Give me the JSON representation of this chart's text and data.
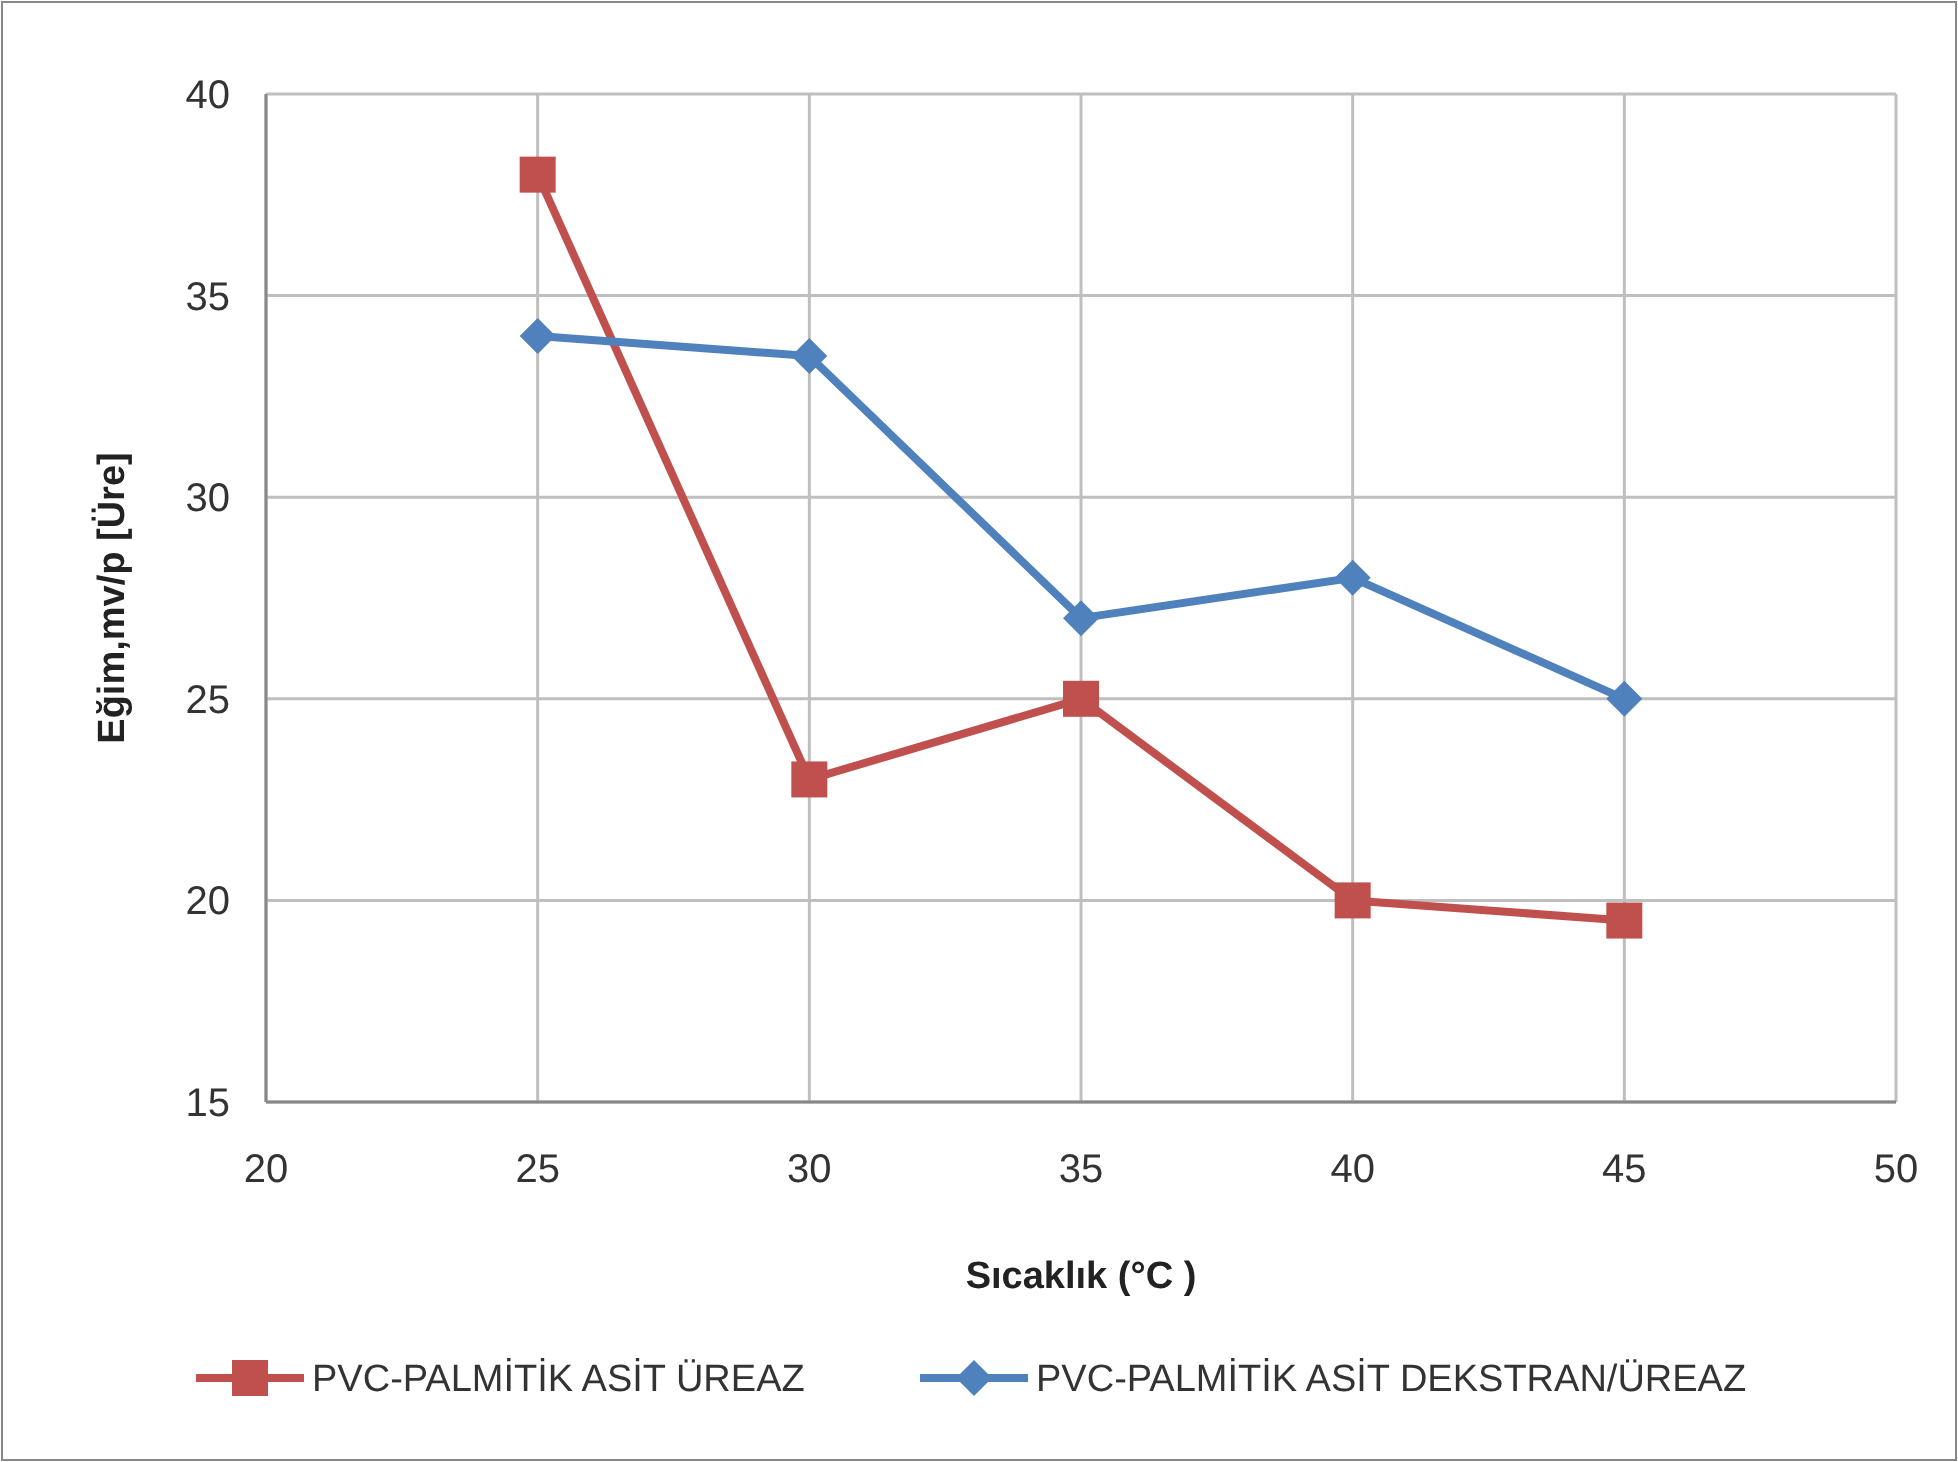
{
  "chart_data": {
    "type": "line",
    "xlabel": "Sıcaklık (°C )",
    "ylabel": "Eğim,mv/p [Üre]",
    "x": [
      25,
      30,
      35,
      40,
      45
    ],
    "series": [
      {
        "name": "PVC-PALMİTİK ASİT ÜREAZ",
        "color": "#c0504d",
        "marker": "square",
        "values": [
          38,
          23,
          25,
          20,
          19.5
        ]
      },
      {
        "name": "PVC-PALMİTİK ASİT DEKSTRAN/ÜREAZ",
        "color": "#4f81bd",
        "marker": "diamond",
        "values": [
          34,
          33.5,
          27,
          28,
          25
        ]
      }
    ],
    "xlim": [
      20,
      50
    ],
    "xticks": [
      20,
      25,
      30,
      35,
      40,
      45,
      50
    ],
    "ylim": [
      15,
      40
    ],
    "yticks": [
      15,
      20,
      25,
      30,
      35,
      40
    ],
    "grid": true,
    "legend": "bottom",
    "line_style": "solid"
  }
}
